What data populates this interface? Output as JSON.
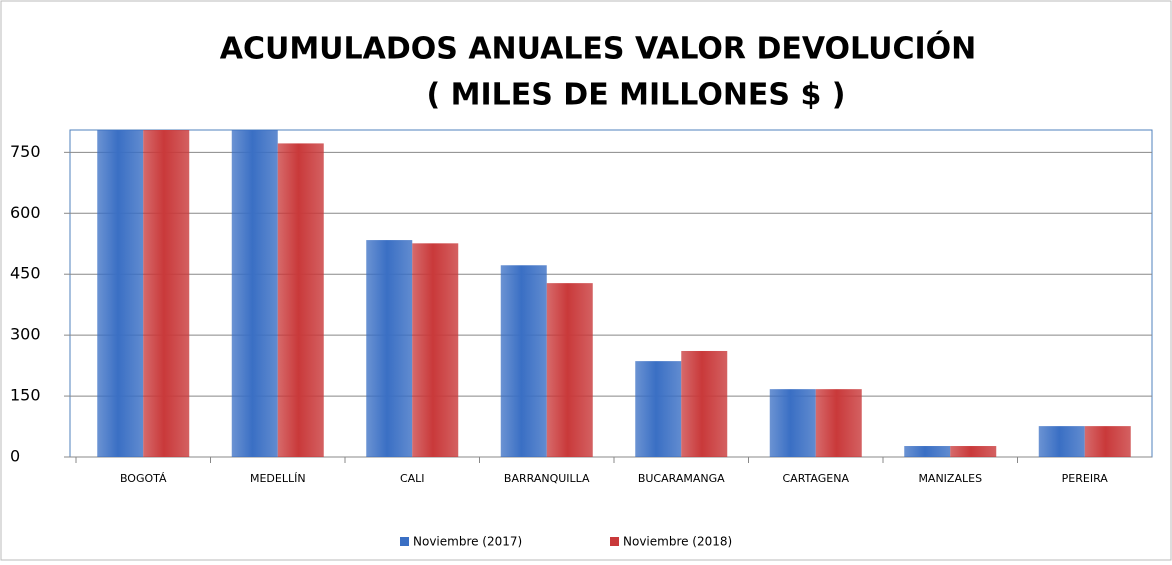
{
  "chart_data": {
    "type": "bar",
    "title": "ACUMULADOS ANUALES VALOR DEVOLUCIÓN",
    "subtitle": "( MILES DE MILLONES $ )",
    "categories": [
      "BOGOTÁ",
      "MEDELLÍN",
      "CALI",
      "BARRANQUILLA",
      "BUCARAMANGA",
      "CARTAGENA",
      "MANIZALES",
      "PEREIRA"
    ],
    "series": [
      {
        "name": "Noviembre (2017)",
        "color": "#3a6fc4",
        "values": [
          850,
          830,
          534,
          472,
          236,
          167,
          27,
          76
        ]
      },
      {
        "name": "Noviembre (2018)",
        "color": "#c9393a",
        "values": [
          850,
          772,
          526,
          428,
          261,
          167,
          27,
          76
        ]
      }
    ],
    "ylim": [
      0,
      805
    ],
    "yticks": [
      0,
      150,
      300,
      450,
      600,
      750
    ],
    "grid": true,
    "legend": "bottom"
  }
}
